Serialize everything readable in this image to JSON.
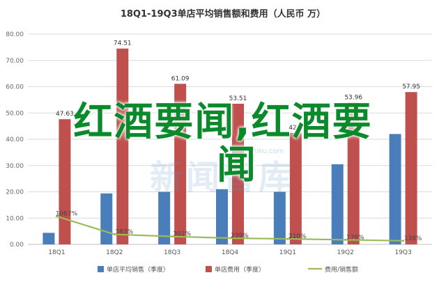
{
  "chart_data": {
    "type": "bar",
    "title": "18Q1-19Q3单店平均销售额和费用（人民币 万）",
    "categories": [
      "18Q1",
      "18Q2",
      "18Q3",
      "18Q4",
      "19Q1",
      "19Q2",
      "19Q3"
    ],
    "ylim": [
      0,
      80
    ],
    "yticks": [
      "0.00",
      "10.00",
      "20.00",
      "30.00",
      "40.00",
      "50.00",
      "60.00",
      "70.00",
      "80.00"
    ],
    "series": [
      {
        "name": "单店平均销售（季度）",
        "type": "bar",
        "color": "#4a7ebb",
        "values": [
          4.4,
          19.4,
          20.0,
          21.0,
          20.0,
          30.5,
          42.0
        ],
        "labels": [
          null,
          null,
          null,
          null,
          null,
          null,
          null
        ]
      },
      {
        "name": "单店费用（季度）",
        "type": "bar",
        "color": "#c0504d",
        "values": [
          47.63,
          74.51,
          61.09,
          53.51,
          42.4,
          53.96,
          57.95
        ],
        "labels": [
          "47.63",
          "74.51",
          "61.09",
          "53.51",
          "42.4",
          "53.96",
          "57.95"
        ]
      },
      {
        "name": "费用/销售额",
        "type": "line",
        "color": "#9bbb59",
        "values": [
          10.67,
          3.83,
          3.01,
          2.39,
          2.1,
          1.76,
          1.38
        ],
        "labels": [
          "1067%",
          "383%",
          "301%",
          "239%",
          "210%",
          "176%",
          "138%"
        ]
      }
    ],
    "grid": true,
    "legend_position": "bottom"
  },
  "overlay": {
    "line1": "红酒要闻,红酒要",
    "line2": "闻"
  },
  "watermark": {
    "main": "新闻智库",
    "small": "tonzhiku.com"
  }
}
